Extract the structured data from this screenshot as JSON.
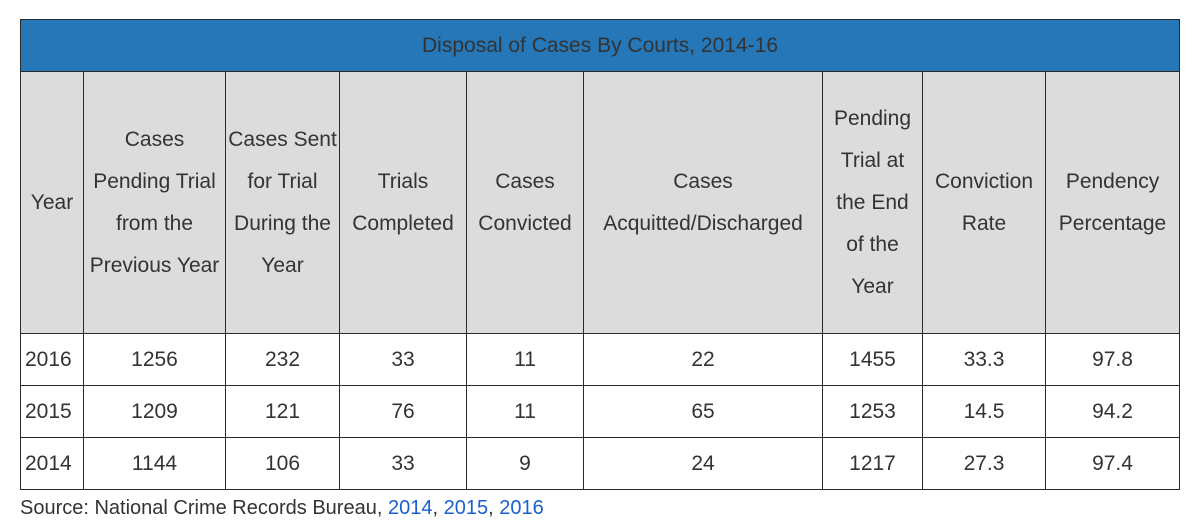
{
  "table": {
    "title": "Disposal of Cases By Courts, 2014-16",
    "headers": [
      "Year",
      "Cases Pending Trial from the Previous Year",
      "Cases Sent for Trial During the Year",
      "Trials Completed",
      "Cases Convicted",
      "Cases Acquitted/Discharged",
      "Pending Trial at the End of the Year",
      "Conviction Rate",
      "Pendency Percentage"
    ],
    "rows": [
      [
        "2016",
        "1256",
        "232",
        "33",
        "11",
        "22",
        "1455",
        "33.3",
        "97.8"
      ],
      [
        "2015",
        "1209",
        "121",
        "76",
        "11",
        "65",
        "1253",
        "14.5",
        "94.2"
      ],
      [
        "2014",
        "1144",
        "106",
        "33",
        "9",
        "24",
        "1217",
        "27.3",
        "97.4"
      ]
    ]
  },
  "source": {
    "prefix": "Source: National Crime Records Bureau, ",
    "links": [
      "2014",
      "2015",
      "2016"
    ],
    "separator": ", ",
    "link_color": "#1a5fd0"
  },
  "colors": {
    "title_bar": "#2577b8",
    "header_bg": "#dcdcdc",
    "border": "#2a2a2a",
    "text": "#333333"
  }
}
